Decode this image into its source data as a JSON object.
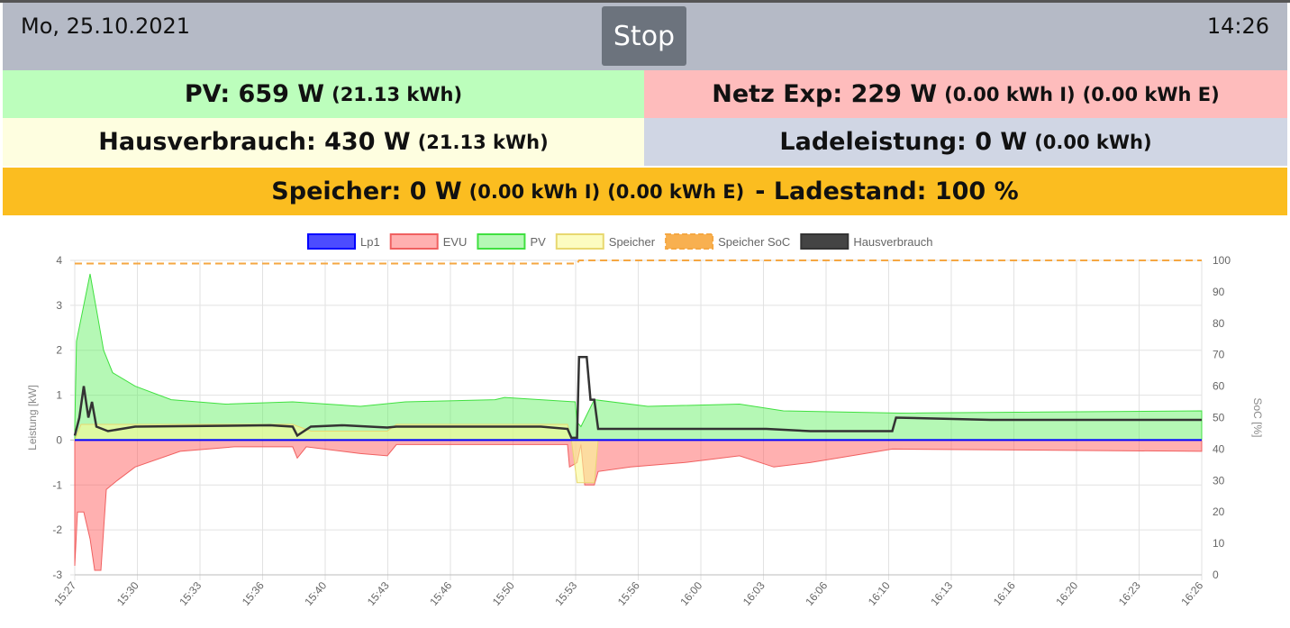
{
  "header": {
    "date": "Mo, 25.10.2021",
    "time": "14:26",
    "stop_label": "Stop"
  },
  "tiles": {
    "pv": {
      "main": "PV: 659 W",
      "sub": "(21.13 kWh)",
      "color": "#bcfebc"
    },
    "netz": {
      "main": "Netz Exp: 229 W",
      "sub1": "(0.00 kWh I)",
      "sub2": "(0.00 kWh E)",
      "color": "#febcbc"
    },
    "haus": {
      "main": "Hausverbrauch: 430 W",
      "sub": "(21.13 kWh)"
    },
    "lade": {
      "main": "Ladeleistung: 0 W",
      "sub": "(0.00 kWh)"
    },
    "speicher": {
      "main": "Speicher: 0 W",
      "sub1": "(0.00 kWh I)",
      "sub2": "(0.00 kWh E)",
      "soc": "- Ladestand: 100 %",
      "color": "#fbbd20"
    }
  },
  "chart_data": {
    "type": "line",
    "ylabel": "Leistung [kW]",
    "y2label": "SoC [%]",
    "ylim": [
      -3,
      4
    ],
    "y2lim": [
      0,
      100
    ],
    "yticks": [
      "4",
      "3",
      "2",
      "1",
      "0",
      "-1",
      "-2",
      "-3"
    ],
    "y2ticks": [
      "100",
      "90",
      "80",
      "70",
      "60",
      "50",
      "40",
      "30",
      "20",
      "10",
      "0"
    ],
    "xlabel_unit": "minutes since 15:27",
    "xlim": [
      0,
      59
    ],
    "xticks": [
      "15:27",
      "15:30",
      "15:33",
      "15:36",
      "15:40",
      "15:43",
      "15:46",
      "15:50",
      "15:53",
      "15:56",
      "16:00",
      "16:03",
      "16:06",
      "16:10",
      "16:13",
      "16:16",
      "16:20",
      "16:23",
      "16:26"
    ],
    "series": [
      {
        "name": "Lp1",
        "color": "#0000ff",
        "fill": "rgba(0,0,255,0.7)",
        "axis": "y",
        "points": [
          [
            0,
            0
          ],
          [
            59,
            0
          ]
        ]
      },
      {
        "name": "EVU",
        "color": "#f06060",
        "fill": "rgba(255,80,80,0.45)",
        "axis": "y",
        "area": true,
        "points": [
          [
            0,
            -2.8
          ],
          [
            0.14,
            -1.6
          ],
          [
            0.47,
            -1.6
          ],
          [
            0.8,
            -2.2
          ],
          [
            1.04,
            -2.9
          ],
          [
            1.37,
            -2.9
          ],
          [
            1.65,
            -1.1
          ],
          [
            2.22,
            -0.9
          ],
          [
            3.16,
            -0.6
          ],
          [
            5.52,
            -0.25
          ],
          [
            8.35,
            -0.15
          ],
          [
            11.41,
            -0.15
          ],
          [
            11.65,
            -0.4
          ],
          [
            12.12,
            -0.15
          ],
          [
            14.95,
            -0.3
          ],
          [
            16.36,
            -0.35
          ],
          [
            16.84,
            -0.1
          ],
          [
            25.8,
            -0.1
          ],
          [
            25.9,
            -0.6
          ],
          [
            26.3,
            -0.5
          ],
          [
            26.5,
            -0.1
          ],
          [
            26.7,
            -1.0
          ],
          [
            27.2,
            -1.0
          ],
          [
            27.4,
            -0.7
          ],
          [
            29.1,
            -0.6
          ],
          [
            31.9,
            -0.5
          ],
          [
            34.8,
            -0.35
          ],
          [
            36.6,
            -0.6
          ],
          [
            38.5,
            -0.5
          ],
          [
            42.8,
            -0.2
          ],
          [
            59,
            -0.25
          ]
        ]
      },
      {
        "name": "PV",
        "color": "#40e040",
        "fill": "rgba(90,240,90,0.45)",
        "axis": "y",
        "area": true,
        "points": [
          [
            0,
            0.3
          ],
          [
            0.09,
            2.2
          ],
          [
            0.8,
            3.7
          ],
          [
            1.18,
            2.8
          ],
          [
            1.51,
            2.0
          ],
          [
            1.98,
            1.5
          ],
          [
            3.16,
            1.2
          ],
          [
            5.05,
            0.9
          ],
          [
            7.88,
            0.8
          ],
          [
            11.41,
            0.85
          ],
          [
            14.95,
            0.75
          ],
          [
            17.31,
            0.85
          ],
          [
            22.0,
            0.9
          ],
          [
            22.5,
            0.95
          ],
          [
            26.2,
            0.85
          ],
          [
            26.3,
            0.4
          ],
          [
            26.5,
            0.3
          ],
          [
            27.2,
            0.9
          ],
          [
            30.0,
            0.75
          ],
          [
            34.8,
            0.8
          ],
          [
            37.1,
            0.65
          ],
          [
            43.2,
            0.6
          ],
          [
            59,
            0.65
          ]
        ]
      },
      {
        "name": "Speicher",
        "color": "#e8d870",
        "fill": "rgba(250,250,150,0.6)",
        "axis": "y",
        "area": true,
        "points": [
          [
            0,
            0
          ],
          [
            0.33,
            0.35
          ],
          [
            11.41,
            0.35
          ],
          [
            12.36,
            0.2
          ],
          [
            16.36,
            0.2
          ],
          [
            16.84,
            0.35
          ],
          [
            25.8,
            0.35
          ],
          [
            26.0,
            0
          ],
          [
            26.3,
            -0.95
          ],
          [
            27.2,
            -0.95
          ],
          [
            27.4,
            0
          ],
          [
            59,
            0
          ]
        ]
      },
      {
        "name": "Speicher SoC",
        "color": "#f5a742",
        "dash": true,
        "axis": "y2",
        "points": [
          [
            0,
            99
          ],
          [
            26.3,
            99
          ],
          [
            26.4,
            100
          ],
          [
            59,
            100
          ]
        ]
      },
      {
        "name": "Hausverbrauch",
        "color": "#333333",
        "fill": "#444444",
        "axis": "y",
        "points": [
          [
            0,
            0.1
          ],
          [
            0.24,
            0.5
          ],
          [
            0.47,
            1.2
          ],
          [
            0.71,
            0.5
          ],
          [
            0.9,
            0.85
          ],
          [
            1.13,
            0.3
          ],
          [
            1.74,
            0.2
          ],
          [
            3.16,
            0.3
          ],
          [
            10.23,
            0.33
          ],
          [
            11.41,
            0.3
          ],
          [
            11.65,
            0.1
          ],
          [
            12.36,
            0.3
          ],
          [
            14.0,
            0.33
          ],
          [
            16.36,
            0.28
          ],
          [
            16.84,
            0.3
          ],
          [
            24.4,
            0.3
          ],
          [
            25.8,
            0.25
          ],
          [
            26.0,
            0.05
          ],
          [
            26.3,
            0.05
          ],
          [
            26.4,
            1.85
          ],
          [
            26.8,
            1.85
          ],
          [
            27.0,
            0.9
          ],
          [
            27.2,
            0.9
          ],
          [
            27.4,
            0.25
          ],
          [
            36.2,
            0.25
          ],
          [
            38.5,
            0.2
          ],
          [
            42.8,
            0.2
          ],
          [
            43.0,
            0.5
          ],
          [
            47.96,
            0.45
          ],
          [
            59,
            0.45
          ]
        ]
      }
    ]
  }
}
